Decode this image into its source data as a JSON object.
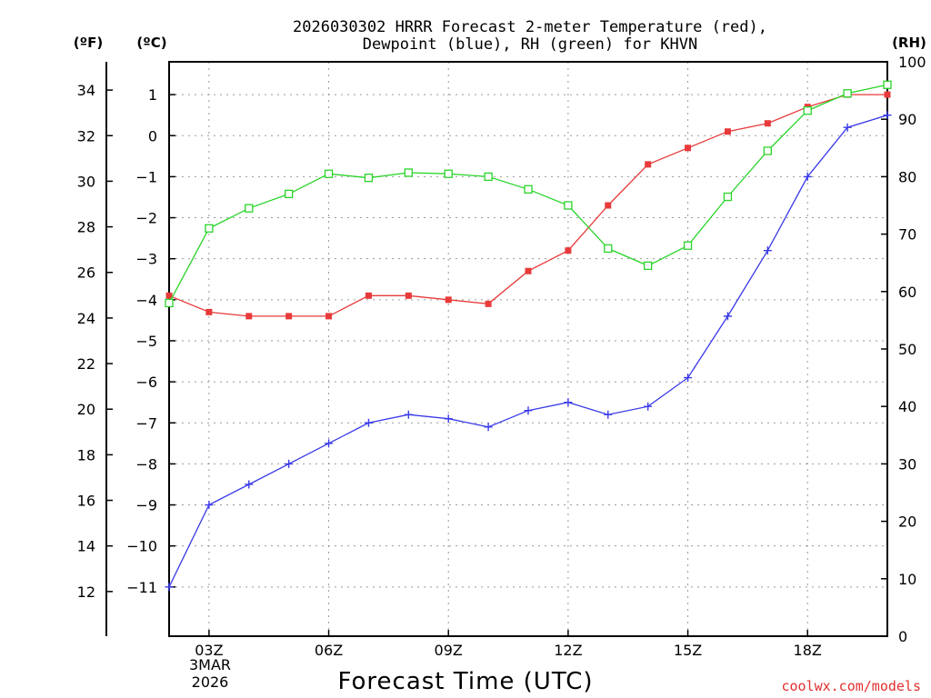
{
  "chart_data": {
    "type": "line",
    "title": "2026030302 HRRR Forecast 2-meter Temperature (red),",
    "subtitle": "Dewpoint (blue), RH (green) for KHVN",
    "xlabel": "Forecast Time (UTC)",
    "credit": "coolwx.com/models",
    "units": {
      "fahrenheit": "(ºF)",
      "celsius": "(ºC)",
      "rh": "(RH)"
    },
    "hours": [
      2,
      3,
      4,
      5,
      6,
      7,
      8,
      9,
      10,
      11,
      12,
      13,
      14,
      15,
      16,
      17,
      18,
      19,
      20
    ],
    "x_range": [
      2,
      20
    ],
    "x_ticks": [
      {
        "hour": 3,
        "label": "03Z"
      },
      {
        "hour": 6,
        "label": "06Z"
      },
      {
        "hour": 9,
        "label": "09Z"
      },
      {
        "hour": 12,
        "label": "12Z"
      },
      {
        "hour": 15,
        "label": "15Z"
      },
      {
        "hour": 18,
        "label": "18Z"
      }
    ],
    "date_label_line1": "3MAR",
    "date_label_line2": "2026",
    "celsius_range": [
      -12.2,
      1.8
    ],
    "celsius_ticks": [
      {
        "value": 1,
        "label": "1"
      },
      {
        "value": 0,
        "label": "0"
      },
      {
        "value": -1,
        "label": "−1"
      },
      {
        "value": -2,
        "label": "−2"
      },
      {
        "value": -3,
        "label": "−3"
      },
      {
        "value": -4,
        "label": "−4"
      },
      {
        "value": -5,
        "label": "−5"
      },
      {
        "value": -6,
        "label": "−6"
      },
      {
        "value": -7,
        "label": "−7"
      },
      {
        "value": -8,
        "label": "−8"
      },
      {
        "value": -9,
        "label": "−9"
      },
      {
        "value": -10,
        "label": "−10"
      },
      {
        "value": -11,
        "label": "−11"
      }
    ],
    "fahrenheit_ticks": [
      {
        "value": 34,
        "label": "34"
      },
      {
        "value": 32,
        "label": "32"
      },
      {
        "value": 30,
        "label": "30"
      },
      {
        "value": 28,
        "label": "28"
      },
      {
        "value": 26,
        "label": "26"
      },
      {
        "value": 24,
        "label": "24"
      },
      {
        "value": 22,
        "label": "22"
      },
      {
        "value": 20,
        "label": "20"
      },
      {
        "value": 18,
        "label": "18"
      },
      {
        "value": 16,
        "label": "16"
      },
      {
        "value": 14,
        "label": "14"
      },
      {
        "value": 12,
        "label": "12"
      }
    ],
    "rh_range": [
      0,
      100
    ],
    "rh_ticks": [
      {
        "value": 100,
        "label": "100"
      },
      {
        "value": 90,
        "label": "90"
      },
      {
        "value": 80,
        "label": "80"
      },
      {
        "value": 70,
        "label": "70"
      },
      {
        "value": 60,
        "label": "60"
      },
      {
        "value": 50,
        "label": "50"
      },
      {
        "value": 40,
        "label": "40"
      },
      {
        "value": 30,
        "label": "30"
      },
      {
        "value": 20,
        "label": "20"
      },
      {
        "value": 10,
        "label": "10"
      },
      {
        "value": 0,
        "label": "0"
      }
    ],
    "series": [
      {
        "name": "Temperature (°C)",
        "axis": "celsius",
        "color": "#e83a3a",
        "marker": "filled-square",
        "values": [
          -3.9,
          -4.3,
          -4.4,
          -4.4,
          -4.4,
          -3.9,
          -3.9,
          -4.0,
          -4.1,
          -3.3,
          -2.8,
          -1.7,
          -0.7,
          -0.3,
          0.1,
          0.3,
          0.7,
          1.0,
          1.0
        ]
      },
      {
        "name": "Dewpoint (°C)",
        "axis": "celsius",
        "color": "#3a3ae8",
        "marker": "plus",
        "values": [
          -11.0,
          -9.0,
          -8.5,
          -8.0,
          -7.5,
          -7.0,
          -6.8,
          -6.9,
          -7.1,
          -6.7,
          -6.5,
          -6.8,
          -6.6,
          -5.9,
          -4.4,
          -2.8,
          -1.0,
          0.2,
          0.5
        ]
      },
      {
        "name": "RH (%)",
        "axis": "rh",
        "color": "#2ad42a",
        "marker": "open-square",
        "values": [
          58,
          71,
          74.5,
          77,
          80.5,
          79.8,
          80.7,
          80.5,
          80,
          77.8,
          75,
          67.5,
          64.5,
          68,
          76.5,
          84.5,
          91.5,
          94.5,
          96
        ]
      }
    ]
  }
}
